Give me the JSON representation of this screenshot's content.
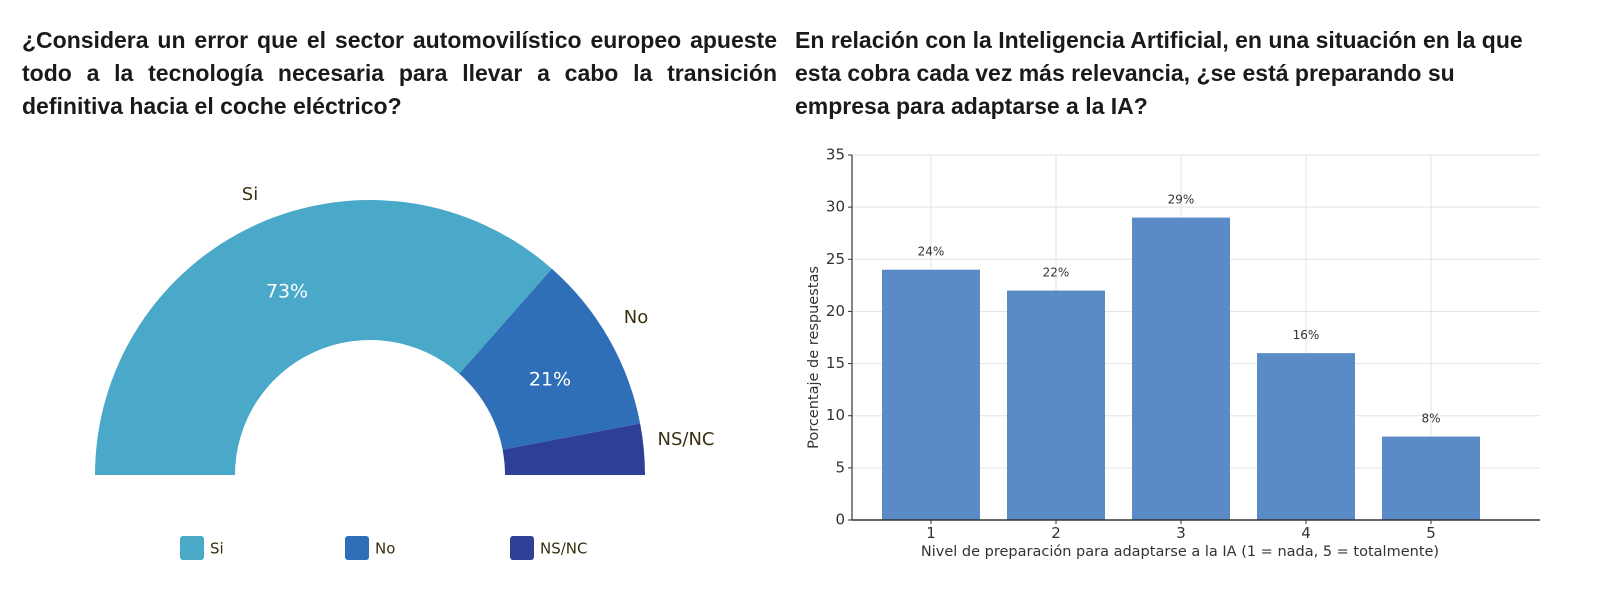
{
  "questions": {
    "left": "¿Considera un error que el sector automovilístico europeo apueste todo a la tecnología necesaria para llevar a cabo la transición definitiva hacia el coche eléctrico?",
    "right": "En relación con la Inteligencia Artificial, en una situación en la que esta cobra cada vez más relevancia, ¿se está preparando su empresa para adaptarse a la IA?"
  },
  "chart_data": [
    {
      "type": "pie",
      "variant": "semi-donut",
      "categories": [
        "Si",
        "No",
        "NS/NC"
      ],
      "values": [
        73,
        21,
        6
      ],
      "data_labels": [
        "73%",
        "21%",
        ""
      ],
      "colors": [
        "#4aa8c8",
        "#2e6fb8",
        "#2e3f98"
      ],
      "legend": {
        "position": "bottom",
        "entries": [
          "Si",
          "No",
          "NS/NC"
        ]
      }
    },
    {
      "type": "bar",
      "categories": [
        "1",
        "2",
        "3",
        "4",
        "5"
      ],
      "values": [
        24,
        22,
        29,
        16,
        8
      ],
      "data_labels": [
        "24%",
        "22%",
        "29%",
        "16%",
        "8%"
      ],
      "xlabel": "Nivel de preparación para adaptarse a la IA (1 = nada, 5 = totalmente)",
      "ylabel": "Porcentaje de respuestas",
      "ylim": [
        0,
        35
      ],
      "yticks": [
        "0",
        "5",
        "10",
        "15",
        "20",
        "25",
        "30",
        "35"
      ],
      "grid": true,
      "color": "#5b8bc6"
    }
  ]
}
